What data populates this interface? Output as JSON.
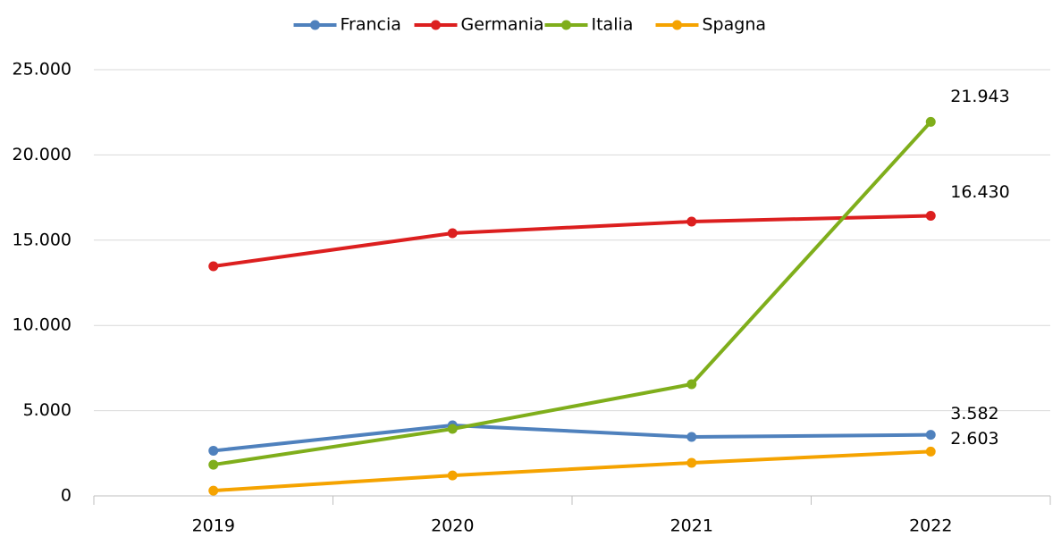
{
  "chart_data": {
    "type": "line",
    "categories": [
      "2019",
      "2020",
      "2021",
      "2022"
    ],
    "series": [
      {
        "name": "Francia",
        "color": "#4f81bd",
        "values": [
          2650,
          4140,
          3460,
          3582
        ],
        "value_labels": [
          null,
          null,
          null,
          "3.582"
        ]
      },
      {
        "name": "Germania",
        "color": "#dc1f1f",
        "values": [
          13470,
          15410,
          16090,
          16430
        ],
        "value_labels": [
          null,
          null,
          null,
          "16.430"
        ]
      },
      {
        "name": "Italia",
        "color": "#7fae1b",
        "values": [
          1830,
          3930,
          6550,
          21943
        ],
        "value_labels": [
          null,
          null,
          null,
          "21.943"
        ]
      },
      {
        "name": "Spagna",
        "color": "#f5a300",
        "values": [
          310,
          1200,
          1940,
          2603
        ],
        "value_labels": [
          null,
          null,
          null,
          "2.603"
        ]
      }
    ],
    "ylim": [
      0,
      25000
    ],
    "yticks": [
      0,
      {
        "value": 5000,
        "label": "5.000"
      },
      {
        "value": 10000,
        "label": "10.000"
      },
      {
        "value": 15000,
        "label": "15.000"
      },
      {
        "value": 20000,
        "label": "20.000"
      },
      {
        "value": 25000,
        "label": "25.000"
      }
    ],
    "grid": true,
    "legend": "top"
  }
}
